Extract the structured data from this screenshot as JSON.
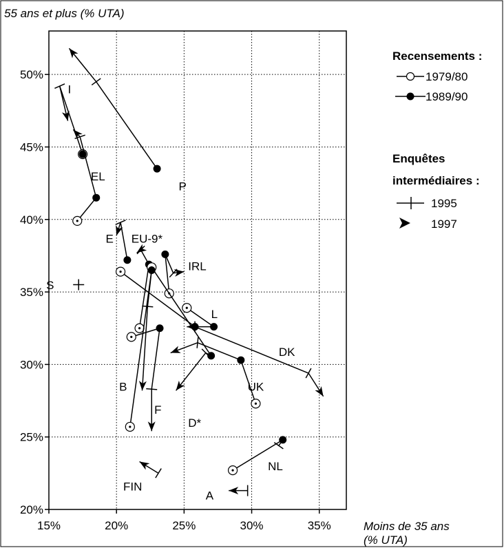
{
  "chart_data": {
    "type": "scatter",
    "y_title": "55 ans et plus  (% UTA)",
    "x_title_line1": "Moins de 35 ans",
    "x_title_line2": "(% UTA)",
    "xlim": [
      15,
      37
    ],
    "ylim": [
      20,
      53
    ],
    "x_ticks": [
      15,
      20,
      25,
      30,
      35
    ],
    "x_tick_labels": [
      "15%",
      "20%",
      "25%",
      "30%",
      "35%"
    ],
    "y_ticks": [
      20,
      25,
      30,
      35,
      40,
      45,
      50
    ],
    "y_tick_labels": [
      "20%",
      "25%",
      "30%",
      "35%",
      "40%",
      "45%",
      "50%"
    ],
    "grid": true,
    "legend": {
      "placement": "right",
      "group1_title": "Recensements :",
      "item_1979": "1979/80",
      "item_1989": "1989/90",
      "group2_title_line1": "Enquêtes",
      "group2_title_line2": "intermédiaires :",
      "item_1995": "1995",
      "item_1997": "1997"
    },
    "countries": [
      {
        "label": "P",
        "p89": [
          23.0,
          43.5
        ],
        "p95": [
          18.5,
          49.5
        ],
        "p97": [
          16.5,
          51.8
        ],
        "label_at": [
          24.6,
          42.0
        ]
      },
      {
        "label": "I",
        "p79": [
          17.5,
          44.5
        ],
        "p89": [
          17.5,
          44.5
        ],
        "p95": [
          15.8,
          49.2
        ],
        "p97": [
          16.4,
          46.8
        ],
        "label_at": [
          16.4,
          48.7
        ]
      },
      {
        "label": "EL",
        "p79": [
          17.1,
          39.9
        ],
        "p89": [
          18.5,
          41.5
        ],
        "p95": [
          17.3,
          45.7
        ],
        "p97": [
          16.8,
          46.2
        ],
        "label_at": [
          18.1,
          42.7
        ]
      },
      {
        "label": "E",
        "p89": [
          20.8,
          37.2
        ],
        "p95": [
          20.3,
          39.8
        ],
        "p97": [
          20.0,
          38.9
        ],
        "label_at": [
          19.2,
          38.4
        ]
      },
      {
        "label": "EU-9*",
        "p79": [
          21.7,
          32.5
        ],
        "p89": [
          22.4,
          36.9
        ],
        "p95": [
          21.8,
          37.9
        ],
        "p97": [
          21.5,
          37.7
        ],
        "label_at": [
          21.1,
          38.4
        ]
      },
      {
        "label": "IRL",
        "p79": [
          23.9,
          34.9
        ],
        "p89": [
          23.6,
          37.6
        ],
        "p95": [
          24.2,
          36.3
        ],
        "p97": [
          25.0,
          36.4
        ],
        "label_at": [
          25.3,
          36.5
        ]
      },
      {
        "label": "S",
        "p95": [
          17.2,
          35.5
        ],
        "label_at": [
          14.8,
          35.2
        ]
      },
      {
        "label": "L",
        "p79": [
          25.2,
          33.9
        ],
        "p89": [
          27.2,
          32.6
        ],
        "p95": [
          25.8,
          32.6
        ],
        "p97": [
          25.2,
          32.6
        ],
        "label_at": [
          27.0,
          33.2
        ]
      },
      {
        "label": "DK",
        "p79": [
          20.3,
          36.4
        ],
        "p89": [
          25.8,
          32.6
        ],
        "p95": [
          34.2,
          29.4
        ],
        "p97": [
          35.3,
          27.8
        ],
        "label_at": [
          32.0,
          30.6
        ]
      },
      {
        "label": "UK",
        "p79": [
          30.3,
          27.3
        ],
        "p89": [
          29.2,
          30.3
        ],
        "p95": [
          26.0,
          31.5
        ],
        "p97": [
          24.0,
          30.8
        ],
        "label_at": [
          29.7,
          28.2
        ]
      },
      {
        "label": "D*",
        "p79": [
          22.6,
          36.7
        ],
        "p89": [
          27.0,
          30.6
        ],
        "p95": [
          26.6,
          30.8
        ],
        "p97": [
          24.4,
          28.2
        ],
        "label_at": [
          25.3,
          25.7
        ]
      },
      {
        "label": "B",
        "p79": [
          21.1,
          31.9
        ],
        "p89": [
          23.2,
          32.5
        ],
        "p95": [
          22.6,
          28.3
        ],
        "p97": [
          22.6,
          25.4
        ],
        "label_at": [
          20.2,
          28.2
        ]
      },
      {
        "label": "F",
        "p79": [
          21.0,
          25.7
        ],
        "p89": [
          22.6,
          36.5
        ],
        "p95": [
          22.3,
          34.0
        ],
        "p97": [
          21.9,
          28.2
        ],
        "label_at": [
          22.8,
          26.6
        ]
      },
      {
        "label": "NL",
        "p79": [
          28.6,
          22.7
        ],
        "p89": [
          32.3,
          24.8
        ],
        "p95": [
          32.0,
          24.4
        ],
        "label_at": [
          31.2,
          22.7
        ]
      },
      {
        "label": "FIN",
        "p95": [
          23.1,
          22.5
        ],
        "p97": [
          21.7,
          23.3
        ],
        "label_at": [
          20.5,
          21.3
        ]
      },
      {
        "label": "A",
        "p95": [
          29.7,
          21.3
        ],
        "p97": [
          28.3,
          21.3
        ],
        "label_at": [
          26.6,
          20.7
        ]
      }
    ]
  }
}
